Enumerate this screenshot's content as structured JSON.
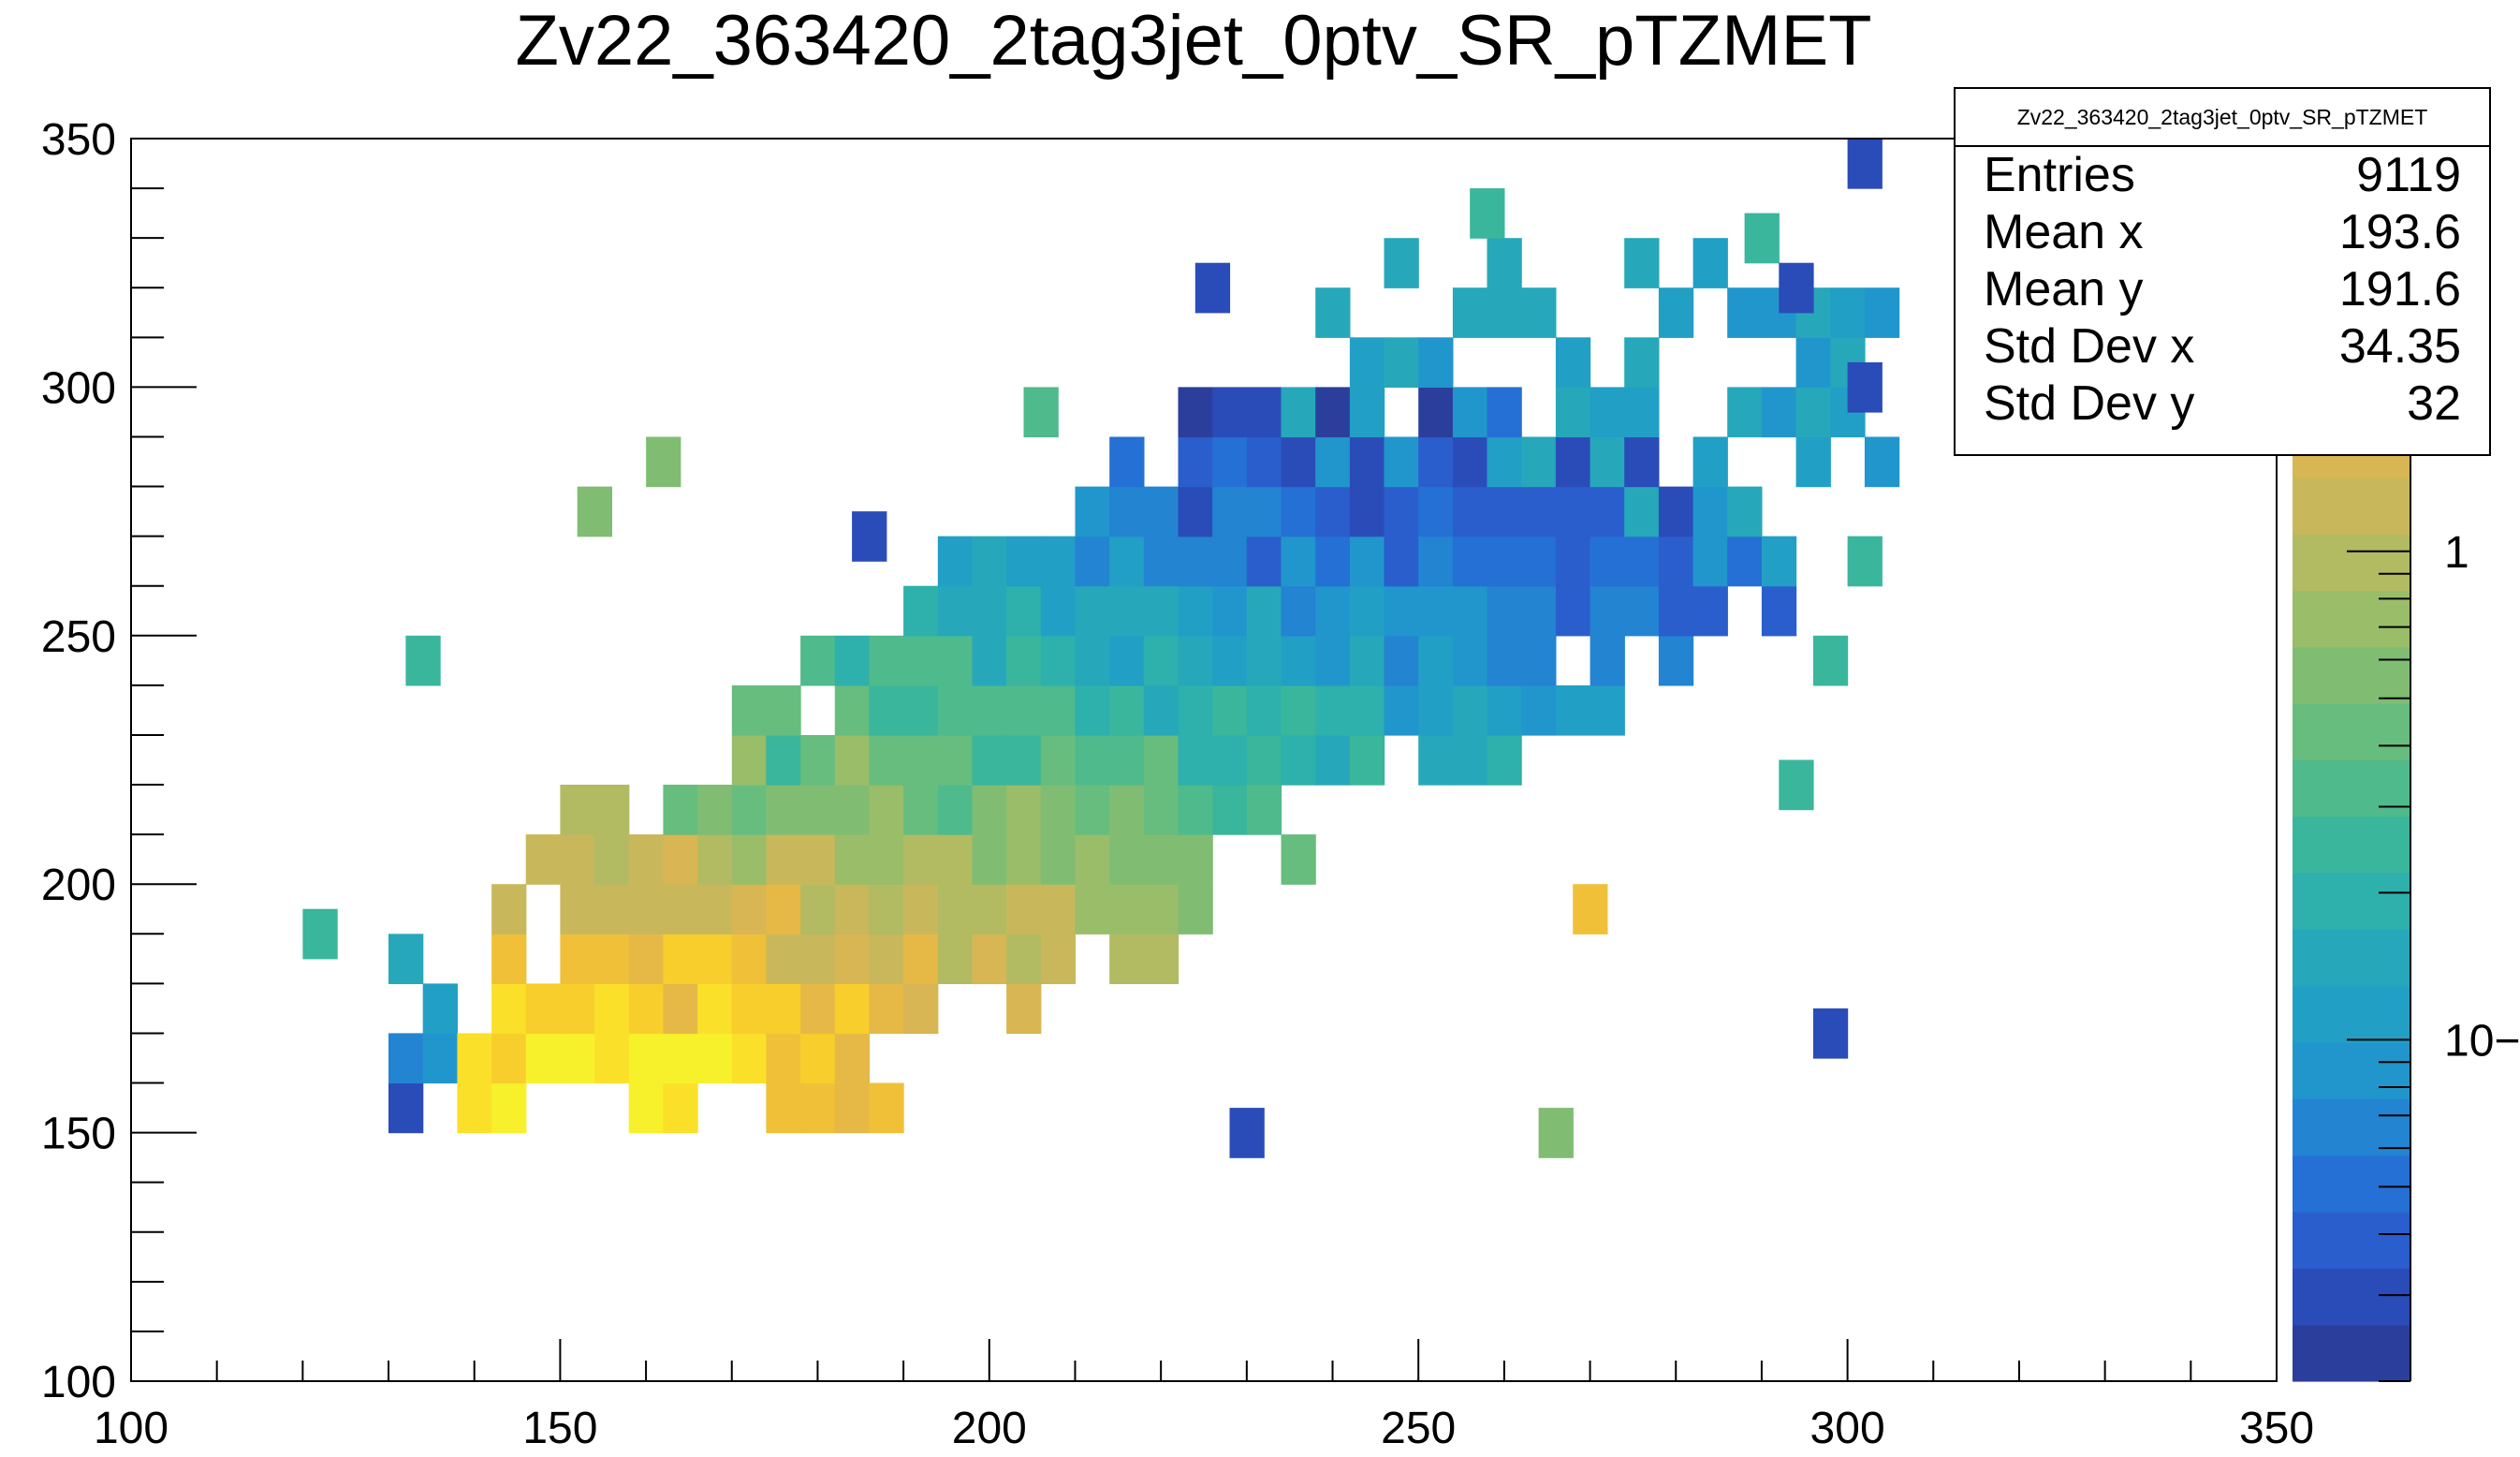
{
  "title": "Zv22_363420_2tag3jet_0ptv_SR_pTZMET",
  "stats": {
    "name": "Zv22_363420_2tag3jet_0ptv_SR_pTZMET",
    "rows": [
      {
        "label": "Entries",
        "value": "9119"
      },
      {
        "label": "Mean x",
        "value": "193.6"
      },
      {
        "label": "Mean y",
        "value": "191.6"
      },
      {
        "label": "Std Dev x",
        "value": "34.35"
      },
      {
        "label": "Std Dev y",
        "value": "32"
      }
    ]
  },
  "chart_data": {
    "type": "heatmap",
    "title": "Zv22_363420_2tag3jet_0ptv_SR_pTZMET",
    "xlabel": "",
    "ylabel": "",
    "xlim": [
      100,
      350
    ],
    "ylim": [
      100,
      350
    ],
    "x_ticks": [
      100,
      150,
      200,
      250,
      300,
      350
    ],
    "y_ticks": [
      100,
      150,
      200,
      250,
      300,
      350
    ],
    "bin_width": 4,
    "bin_height": 10,
    "z_scale": "log",
    "z_range": [
      0.02,
      7
    ],
    "colorbar_ticks": [
      {
        "value": 1,
        "label": "1"
      },
      {
        "value": 0.1,
        "label": "10−1"
      }
    ],
    "palette": [
      "#2c3e9c",
      "#2a4cb8",
      "#2a5ecd",
      "#2570d4",
      "#2384d2",
      "#2196cc",
      "#229fc5",
      "#26a8ba",
      "#2eb0ac",
      "#3ab69c",
      "#4fba8c",
      "#67bd7e",
      "#80bd73",
      "#9abd69",
      "#b2bb62",
      "#c8b85b",
      "#d8b653",
      "#e6b946",
      "#f0c038",
      "#f8ce2c",
      "#fbe02a",
      "#f7f12c"
    ],
    "region": {
      "x_range": [
        130,
        305
      ],
      "y_range": [
        150,
        350
      ],
      "peak": [
        155,
        160
      ]
    },
    "isolated_bins": [
      {
        "x": 122,
        "y": 190,
        "z": 0.25
      },
      {
        "x": 134,
        "y": 245,
        "z": 0.25
      },
      {
        "x": 162,
        "y": 285,
        "z": 0.5
      },
      {
        "x": 154,
        "y": 275,
        "z": 0.5
      },
      {
        "x": 206,
        "y": 295,
        "z": 0.35
      },
      {
        "x": 186,
        "y": 270,
        "z": 0.03
      },
      {
        "x": 302,
        "y": 345,
        "z": 0.03
      },
      {
        "x": 258,
        "y": 335,
        "z": 0.25
      },
      {
        "x": 290,
        "y": 330,
        "z": 0.25
      },
      {
        "x": 226,
        "y": 320,
        "z": 0.03
      },
      {
        "x": 294,
        "y": 320,
        "z": 0.03
      },
      {
        "x": 302,
        "y": 300,
        "z": 0.03
      },
      {
        "x": 302,
        "y": 265,
        "z": 0.25
      },
      {
        "x": 298,
        "y": 245,
        "z": 0.25
      },
      {
        "x": 294,
        "y": 220,
        "z": 0.25
      },
      {
        "x": 298,
        "y": 170,
        "z": 0.03
      },
      {
        "x": 266,
        "y": 150,
        "z": 0.5
      },
      {
        "x": 270,
        "y": 195,
        "z": 2.5
      },
      {
        "x": 230,
        "y": 150,
        "z": 0.03
      }
    ]
  }
}
